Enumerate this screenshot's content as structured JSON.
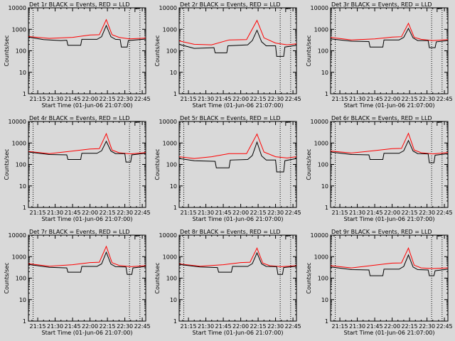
{
  "page": {
    "background": "#d9d9d9",
    "event_color": "#000000",
    "lld_color": "#ff0000"
  },
  "chart_data": [
    {
      "type": "line",
      "title": "Det 1r BLACK = Events, RED = LLD",
      "xlabel": "Start Time (01-Jun-06 21:07:00)",
      "ylabel": "Counts/sec",
      "xticks": [
        "21:15",
        "21:30",
        "21:45",
        "22:00",
        "22:15",
        "22:30",
        "22:45"
      ],
      "yticks": [
        "1",
        "10",
        "100",
        "1000",
        "10000"
      ],
      "ylim": [
        1,
        10000
      ],
      "xlim": [
        "21:07",
        "22:48"
      ],
      "vlines": [
        "21:11",
        "22:34",
        "22:43"
      ],
      "series": [
        {
          "name": "Events",
          "color": "#000000",
          "x": [
            "21:07",
            "21:20",
            "21:35",
            "21:40",
            "21:41",
            "21:52",
            "21:53",
            "22:06",
            "22:10",
            "22:14",
            "22:18",
            "22:22",
            "22:26",
            "22:27",
            "22:32",
            "22:33",
            "22:48"
          ],
          "values": [
            430,
            330,
            300,
            310,
            180,
            180,
            340,
            340,
            450,
            1500,
            450,
            340,
            330,
            150,
            150,
            300,
            350
          ]
        },
        {
          "name": "LLD",
          "color": "#ff0000",
          "x": [
            "21:07",
            "21:25",
            "21:45",
            "22:00",
            "22:08",
            "22:14",
            "22:19",
            "22:25",
            "22:34",
            "22:48"
          ],
          "values": [
            460,
            380,
            420,
            540,
            560,
            2800,
            560,
            420,
            360,
            390
          ]
        }
      ]
    },
    {
      "type": "line",
      "title": "Det 2r BLACK = Events, RED = LLD",
      "xlabel": "Start Time (01-Jun-06 21:07:00)",
      "ylabel": "Counts/sec",
      "xticks": [
        "21:15",
        "21:30",
        "21:45",
        "22:00",
        "22:15",
        "22:30",
        "22:45"
      ],
      "yticks": [
        "1",
        "10",
        "100",
        "1000",
        "10000"
      ],
      "ylim": [
        1,
        10000
      ],
      "xlim": [
        "21:07",
        "22:48"
      ],
      "vlines": [
        "21:11",
        "22:34",
        "22:43"
      ],
      "series": [
        {
          "name": "Events",
          "color": "#000000",
          "x": [
            "21:07",
            "21:20",
            "21:37",
            "21:38",
            "21:48",
            "21:49",
            "22:06",
            "22:10",
            "22:14",
            "22:18",
            "22:22",
            "22:30",
            "22:31",
            "22:37",
            "22:38",
            "22:48"
          ],
          "values": [
            200,
            130,
            140,
            80,
            80,
            170,
            190,
            300,
            900,
            260,
            170,
            170,
            55,
            55,
            150,
            180
          ]
        },
        {
          "name": "LLD",
          "color": "#ff0000",
          "x": [
            "21:07",
            "21:20",
            "21:35",
            "21:50",
            "22:05",
            "22:14",
            "22:20",
            "22:30",
            "22:40",
            "22:48"
          ],
          "values": [
            290,
            200,
            190,
            320,
            330,
            2600,
            400,
            230,
            190,
            210
          ]
        }
      ]
    },
    {
      "type": "line",
      "title": "Det 3r BLACK = Events, RED = LLD",
      "xlabel": "Start Time (01-Jun-06 21:07:00)",
      "ylabel": "Counts/sec",
      "xticks": [
        "21:15",
        "21:30",
        "21:45",
        "22:00",
        "22:15",
        "22:30",
        "22:45"
      ],
      "yticks": [
        "1",
        "10",
        "100",
        "1000",
        "10000"
      ],
      "ylim": [
        1,
        10000
      ],
      "xlim": [
        "21:07",
        "22:48"
      ],
      "vlines": [
        "21:11",
        "22:34",
        "22:43"
      ],
      "series": [
        {
          "name": "Events",
          "color": "#000000",
          "x": [
            "21:07",
            "21:25",
            "21:40",
            "21:41",
            "21:52",
            "21:53",
            "22:06",
            "22:10",
            "22:14",
            "22:18",
            "22:22",
            "22:31",
            "22:32",
            "22:37",
            "22:38",
            "22:48"
          ],
          "values": [
            360,
            280,
            270,
            150,
            150,
            320,
            320,
            420,
            1100,
            400,
            300,
            300,
            140,
            140,
            260,
            300
          ]
        },
        {
          "name": "LLD",
          "color": "#ff0000",
          "x": [
            "21:07",
            "21:25",
            "21:45",
            "22:00",
            "22:08",
            "22:14",
            "22:19",
            "22:25",
            "22:35",
            "22:48"
          ],
          "values": [
            420,
            320,
            360,
            430,
            450,
            1900,
            420,
            340,
            300,
            330
          ]
        }
      ]
    },
    {
      "type": "line",
      "title": "Det 4r BLACK = Events, RED = LLD",
      "xlabel": "Start Time (01-Jun-06 21:07:00)",
      "ylabel": "Counts/sec",
      "xticks": [
        "21:15",
        "21:30",
        "21:45",
        "22:00",
        "22:15",
        "22:30",
        "22:45"
      ],
      "yticks": [
        "1",
        "10",
        "100",
        "1000",
        "10000"
      ],
      "ylim": [
        1,
        10000
      ],
      "xlim": [
        "21:07",
        "22:48"
      ],
      "vlines": [
        "21:11",
        "22:34",
        "22:43"
      ],
      "series": [
        {
          "name": "Events",
          "color": "#000000",
          "x": [
            "21:07",
            "21:25",
            "21:40",
            "21:41",
            "21:52",
            "21:53",
            "22:06",
            "22:10",
            "22:14",
            "22:18",
            "22:22",
            "22:30",
            "22:31",
            "22:35",
            "22:36",
            "22:48"
          ],
          "values": [
            380,
            290,
            280,
            170,
            170,
            330,
            330,
            430,
            1200,
            420,
            320,
            320,
            130,
            130,
            280,
            330
          ]
        },
        {
          "name": "LLD",
          "color": "#ff0000",
          "x": [
            "21:07",
            "21:25",
            "21:45",
            "22:00",
            "22:08",
            "22:14",
            "22:19",
            "22:25",
            "22:35",
            "22:48"
          ],
          "values": [
            400,
            320,
            420,
            520,
            540,
            2700,
            470,
            350,
            310,
            360
          ]
        }
      ]
    },
    {
      "type": "line",
      "title": "Det 5r BLACK = Events, RED = LLD",
      "xlabel": "Start Time (01-Jun-06 21:07:00)",
      "ylabel": "Counts/sec",
      "xticks": [
        "21:15",
        "21:30",
        "21:45",
        "22:00",
        "22:15",
        "22:30",
        "22:45"
      ],
      "yticks": [
        "1",
        "10",
        "100",
        "1000",
        "10000"
      ],
      "ylim": [
        1,
        10000
      ],
      "xlim": [
        "21:07",
        "22:48"
      ],
      "vlines": [
        "21:11",
        "22:34",
        "22:43"
      ],
      "series": [
        {
          "name": "Events",
          "color": "#000000",
          "x": [
            "21:07",
            "21:20",
            "21:38",
            "21:39",
            "21:50",
            "21:51",
            "22:06",
            "22:10",
            "22:14",
            "22:18",
            "22:22",
            "22:30",
            "22:31",
            "22:37",
            "22:38",
            "22:48"
          ],
          "values": [
            190,
            150,
            140,
            70,
            70,
            160,
            170,
            260,
            1100,
            250,
            160,
            160,
            45,
            45,
            150,
            190
          ]
        },
        {
          "name": "LLD",
          "color": "#ff0000",
          "x": [
            "21:07",
            "21:20",
            "21:35",
            "21:50",
            "22:05",
            "22:14",
            "22:20",
            "22:30",
            "22:40",
            "22:48"
          ],
          "values": [
            230,
            190,
            230,
            320,
            320,
            2600,
            380,
            230,
            200,
            230
          ]
        }
      ]
    },
    {
      "type": "line",
      "title": "Det 6r BLACK = Events, RED = LLD",
      "xlabel": "Start Time (01-Jun-06 21:07:00)",
      "ylabel": "Counts/sec",
      "xticks": [
        "21:15",
        "21:30",
        "21:45",
        "22:00",
        "22:15",
        "22:30",
        "22:45"
      ],
      "yticks": [
        "1",
        "10",
        "100",
        "1000",
        "10000"
      ],
      "ylim": [
        1,
        10000
      ],
      "xlim": [
        "21:07",
        "22:48"
      ],
      "vlines": [
        "21:11",
        "22:34",
        "22:43"
      ],
      "series": [
        {
          "name": "Events",
          "color": "#000000",
          "x": [
            "21:07",
            "21:25",
            "21:40",
            "21:41",
            "21:52",
            "21:53",
            "22:06",
            "22:10",
            "22:14",
            "22:18",
            "22:22",
            "22:31",
            "22:32",
            "22:36",
            "22:37",
            "22:48"
          ],
          "values": [
            380,
            290,
            280,
            170,
            170,
            330,
            330,
            430,
            1300,
            420,
            320,
            310,
            120,
            120,
            270,
            320
          ]
        },
        {
          "name": "LLD",
          "color": "#ff0000",
          "x": [
            "21:07",
            "21:25",
            "21:45",
            "22:00",
            "22:08",
            "22:14",
            "22:19",
            "22:25",
            "22:35",
            "22:48"
          ],
          "values": [
            420,
            340,
            440,
            540,
            560,
            2800,
            470,
            350,
            310,
            360
          ]
        }
      ]
    },
    {
      "type": "line",
      "title": "Det 7r BLACK = Events, RED = LLD",
      "xlabel": "Start Time (01-Jun-06 21:07:00)",
      "ylabel": "Counts/sec",
      "xticks": [
        "21:15",
        "21:30",
        "21:45",
        "22:00",
        "22:15",
        "22:30",
        "22:45"
      ],
      "yticks": [
        "1",
        "10",
        "100",
        "1000",
        "10000"
      ],
      "ylim": [
        1,
        10000
      ],
      "xlim": [
        "21:07",
        "22:48"
      ],
      "vlines": [
        "21:11",
        "22:34",
        "22:43"
      ],
      "series": [
        {
          "name": "Events",
          "color": "#000000",
          "x": [
            "21:07",
            "21:25",
            "21:40",
            "21:41",
            "21:52",
            "21:53",
            "22:06",
            "22:10",
            "22:14",
            "22:18",
            "22:22",
            "22:31",
            "22:32",
            "22:36",
            "22:37",
            "22:48"
          ],
          "values": [
            430,
            320,
            300,
            190,
            190,
            350,
            350,
            460,
            1600,
            450,
            340,
            330,
            150,
            150,
            300,
            350
          ]
        },
        {
          "name": "LLD",
          "color": "#ff0000",
          "x": [
            "21:07",
            "21:25",
            "21:45",
            "22:00",
            "22:08",
            "22:14",
            "22:19",
            "22:25",
            "22:35",
            "22:48"
          ],
          "values": [
            470,
            360,
            420,
            530,
            550,
            3000,
            520,
            390,
            340,
            380
          ]
        }
      ]
    },
    {
      "type": "line",
      "title": "Det 8r BLACK = Events, RED = LLD",
      "xlabel": "Start Time (01-Jun-06 21:07:00)",
      "ylabel": "Counts/sec",
      "xticks": [
        "21:15",
        "21:30",
        "21:45",
        "22:00",
        "22:15",
        "22:30",
        "22:45"
      ],
      "yticks": [
        "1",
        "10",
        "100",
        "1000",
        "10000"
      ],
      "ylim": [
        1,
        10000
      ],
      "xlim": [
        "21:07",
        "22:48"
      ],
      "vlines": [
        "21:11",
        "22:34",
        "22:43"
      ],
      "series": [
        {
          "name": "Events",
          "color": "#000000",
          "x": [
            "21:07",
            "21:25",
            "21:40",
            "21:41",
            "21:52",
            "21:53",
            "22:06",
            "22:10",
            "22:14",
            "22:18",
            "22:22",
            "22:31",
            "22:32",
            "22:36",
            "22:37",
            "22:48"
          ],
          "values": [
            430,
            330,
            310,
            190,
            190,
            350,
            350,
            470,
            1500,
            460,
            350,
            340,
            150,
            150,
            310,
            360
          ]
        },
        {
          "name": "LLD",
          "color": "#ff0000",
          "x": [
            "21:07",
            "21:25",
            "21:45",
            "22:00",
            "22:08",
            "22:14",
            "22:19",
            "22:25",
            "22:35",
            "22:48"
          ],
          "values": [
            460,
            360,
            420,
            530,
            550,
            2500,
            500,
            380,
            340,
            380
          ]
        }
      ]
    },
    {
      "type": "line",
      "title": "Det 9r BLACK = Events, RED = LLD",
      "xlabel": "Start Time (01-Jun-06 21:07:00)",
      "ylabel": "Counts/sec",
      "xticks": [
        "21:15",
        "21:30",
        "21:45",
        "22:00",
        "22:15",
        "22:30",
        "22:45"
      ],
      "yticks": [
        "1",
        "10",
        "100",
        "1000",
        "10000"
      ],
      "ylim": [
        1,
        10000
      ],
      "xlim": [
        "21:07",
        "22:48"
      ],
      "vlines": [
        "21:11",
        "22:34",
        "22:43"
      ],
      "series": [
        {
          "name": "Events",
          "color": "#000000",
          "x": [
            "21:07",
            "21:25",
            "21:40",
            "21:41",
            "21:52",
            "21:53",
            "22:06",
            "22:10",
            "22:14",
            "22:18",
            "22:22",
            "22:31",
            "22:32",
            "22:36",
            "22:37",
            "22:48"
          ],
          "values": [
            330,
            250,
            240,
            130,
            130,
            260,
            260,
            350,
            1200,
            330,
            250,
            240,
            130,
            130,
            220,
            260
          ]
        },
        {
          "name": "LLD",
          "color": "#ff0000",
          "x": [
            "21:07",
            "21:25",
            "21:45",
            "22:00",
            "22:08",
            "22:14",
            "22:19",
            "22:25",
            "22:35",
            "22:48"
          ],
          "values": [
            380,
            300,
            400,
            500,
            510,
            2500,
            400,
            300,
            280,
            300
          ]
        }
      ]
    }
  ]
}
